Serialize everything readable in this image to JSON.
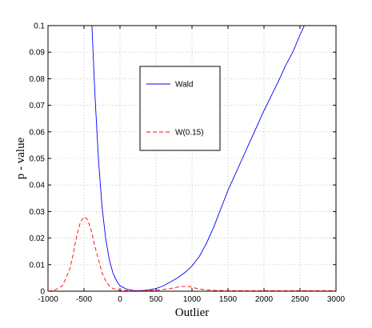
{
  "chart_data": {
    "type": "line",
    "xlabel": "Outlier",
    "ylabel": "p - value",
    "xlim": [
      -1000,
      3000
    ],
    "xticks": [
      -1000,
      -500,
      0,
      500,
      1000,
      1500,
      2000,
      2500,
      3000
    ],
    "ylim": [
      0,
      0.1
    ],
    "yticks": [
      0,
      0.01,
      0.02,
      0.03,
      0.04,
      0.05,
      0.06,
      0.07,
      0.08,
      0.09,
      0.1
    ],
    "grid": true,
    "series": [
      {
        "name": "Wald",
        "color": "#0000ff",
        "dash": false,
        "x": [
          -390,
          -350,
          -300,
          -250,
          -200,
          -150,
          -100,
          -50,
          0,
          100,
          200,
          300,
          400,
          500,
          600,
          700,
          800,
          900,
          1000,
          1100,
          1200,
          1300,
          1400,
          1500,
          1600,
          1700,
          1800,
          1900,
          2000,
          2100,
          2200,
          2300,
          2400,
          2500,
          2560
        ],
        "values": [
          0.1,
          0.075,
          0.05,
          0.032,
          0.02,
          0.012,
          0.007,
          0.004,
          0.002,
          0.0007,
          0.0002,
          0.0002,
          0.0005,
          0.001,
          0.002,
          0.0035,
          0.005,
          0.007,
          0.0095,
          0.013,
          0.018,
          0.024,
          0.031,
          0.038,
          0.044,
          0.05,
          0.056,
          0.062,
          0.068,
          0.0735,
          0.079,
          0.085,
          0.09,
          0.0965,
          0.1
        ]
      },
      {
        "name": "W(0.15)",
        "color": "#ff0000",
        "dash": true,
        "x": [
          -1000,
          -900,
          -800,
          -700,
          -650,
          -600,
          -550,
          -500,
          -450,
          -400,
          -350,
          -300,
          -250,
          -200,
          -150,
          -100,
          0,
          200,
          500,
          700,
          850,
          950,
          1100,
          1300,
          1500,
          2000,
          3000
        ],
        "values": [
          0,
          0.0005,
          0.002,
          0.008,
          0.014,
          0.021,
          0.026,
          0.028,
          0.027,
          0.023,
          0.017,
          0.012,
          0.007,
          0.004,
          0.002,
          0.001,
          0.0003,
          0.0002,
          0.0003,
          0.001,
          0.0018,
          0.0018,
          0.0008,
          0.0003,
          0.0002,
          0.0002,
          0.0002
        ]
      }
    ]
  }
}
